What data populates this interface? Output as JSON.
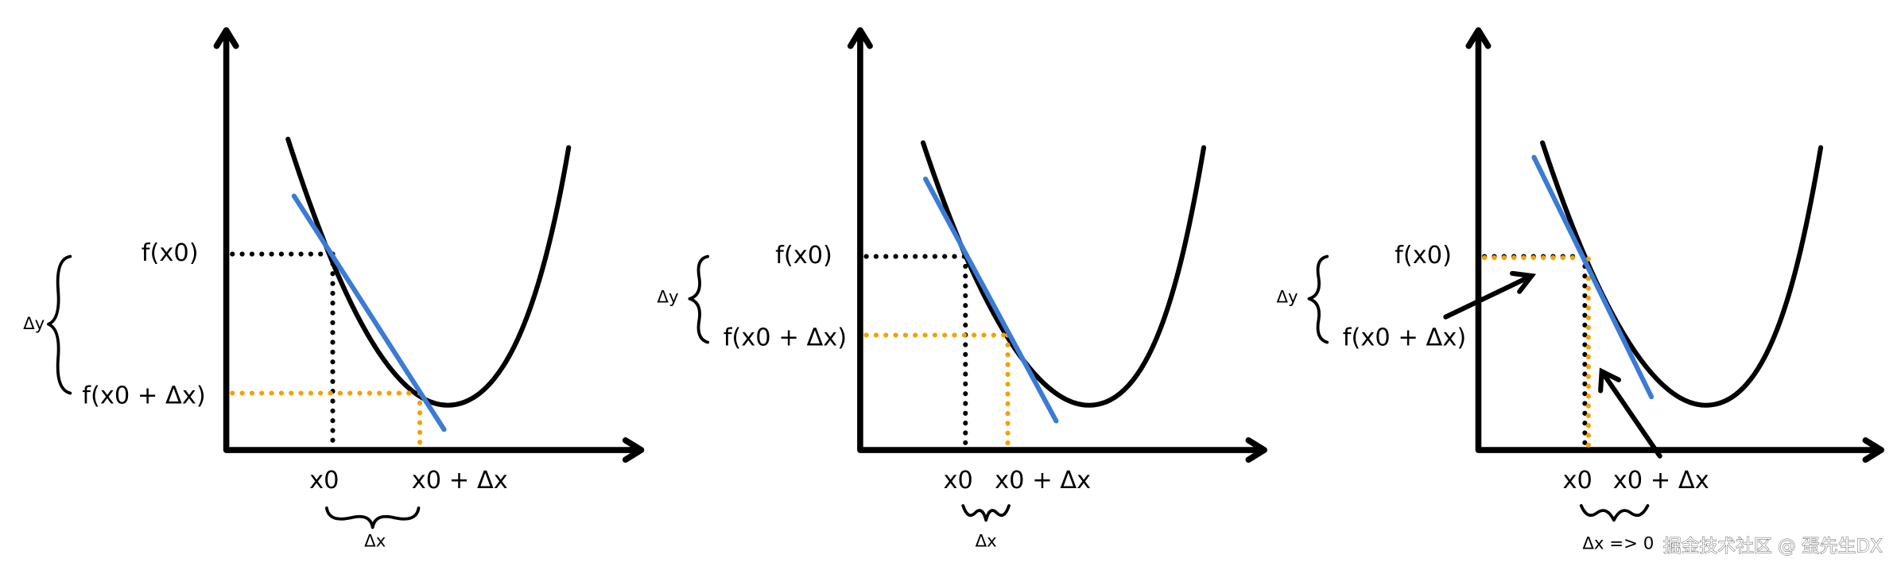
{
  "panels": [
    {
      "f_x0": "f(x0)",
      "f_x0_dx": "f(x0 + Δx)",
      "delta_y": "Δy",
      "x0": "x0",
      "x0_dx": "x0 + Δx",
      "delta_x": "Δx"
    },
    {
      "f_x0": "f(x0)",
      "f_x0_dx": "f(x0 + Δx)",
      "delta_y": "Δy",
      "x0": "x0",
      "x0_dx": "x0 + Δx",
      "delta_x": "Δx"
    },
    {
      "f_x0": "f(x0)",
      "f_x0_dx": "f(x0 + Δx)",
      "delta_y": "Δy",
      "x0": "x0",
      "x0_dx": "x0 + Δx",
      "delta_x": "Δx => 0"
    }
  ],
  "watermark": "掘金技术社区 @ 蛋先生DX"
}
